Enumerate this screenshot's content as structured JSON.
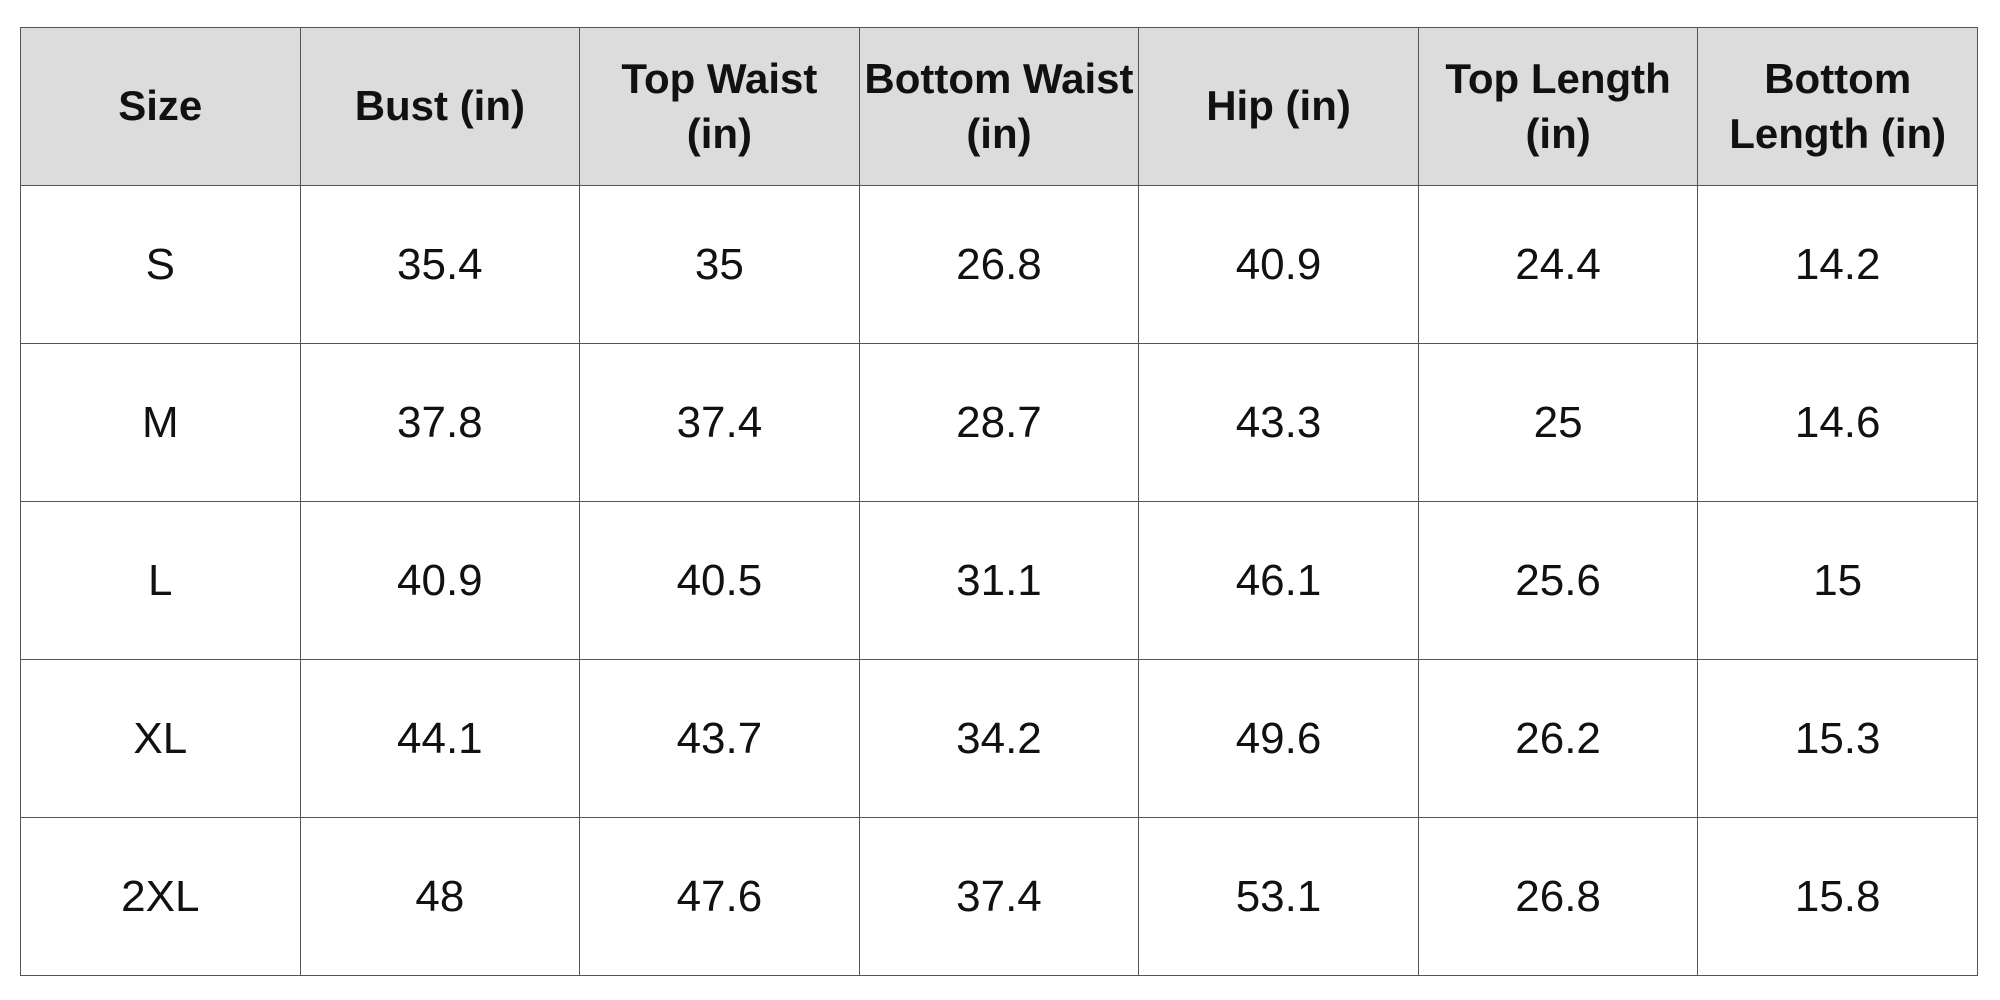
{
  "table": {
    "header": [
      "Size",
      "Bust (in)",
      "Top Waist (in)",
      "Bottom Waist (in)",
      "Hip (in)",
      "Top Length (in)",
      "Bottom Length (in)"
    ],
    "rows": [
      [
        "S",
        "35.4",
        "35",
        "26.8",
        "40.9",
        "24.4",
        "14.2"
      ],
      [
        "M",
        "37.8",
        "37.4",
        "28.7",
        "43.3",
        "25",
        "14.6"
      ],
      [
        "L",
        "40.9",
        "40.5",
        "31.1",
        "46.1",
        "25.6",
        "15"
      ],
      [
        "XL",
        "44.1",
        "43.7",
        "34.2",
        "49.6",
        "26.2",
        "15.3"
      ],
      [
        "2XL",
        "48",
        "47.6",
        "37.4",
        "53.1",
        "26.8",
        "15.8"
      ]
    ]
  }
}
